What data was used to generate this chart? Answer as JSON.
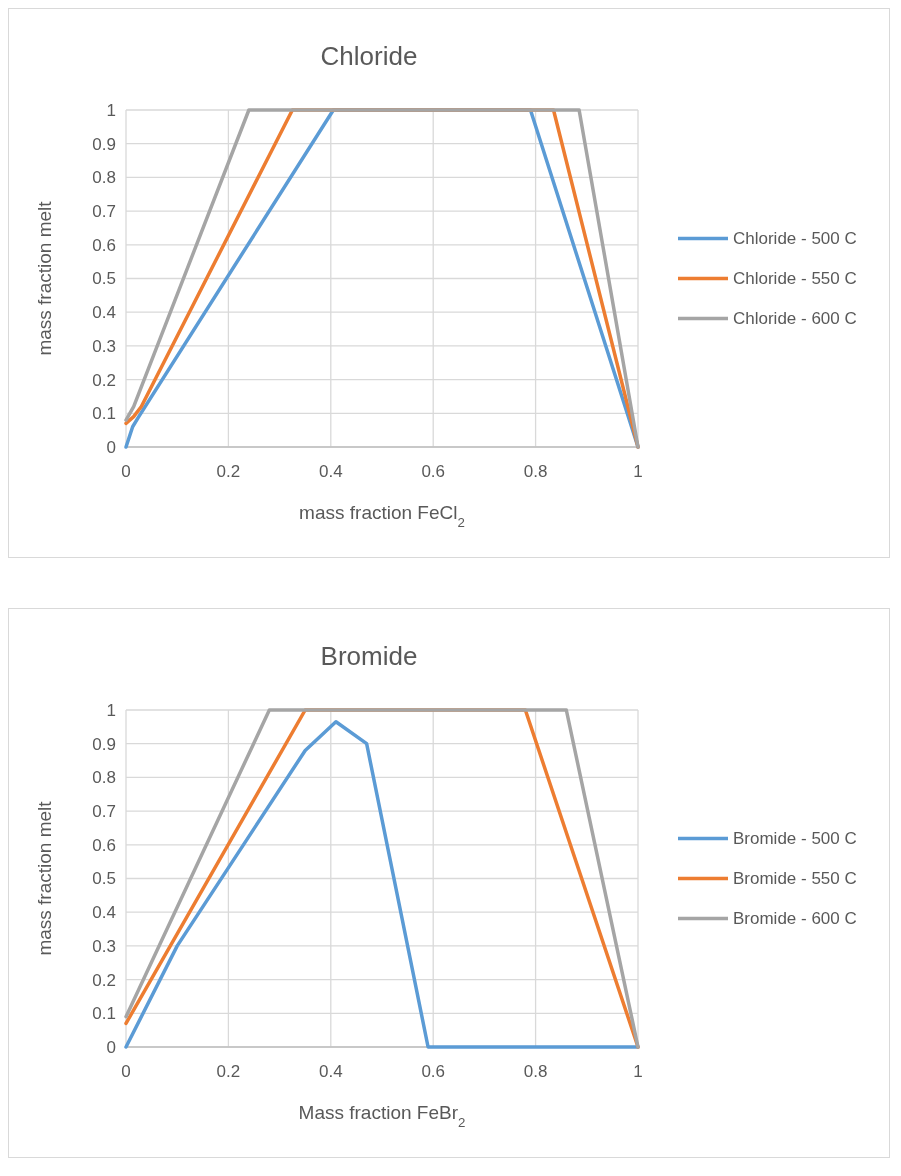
{
  "chart_data": [
    {
      "type": "line",
      "title": "Chloride",
      "xlabel": "mass fraction FeCl$_{2}$",
      "ylabel": "mass fraction melt",
      "xlim": [
        0,
        1
      ],
      "xticks": [
        0,
        0.2,
        0.4,
        0.6,
        0.8,
        1
      ],
      "ylim": [
        0,
        1
      ],
      "yticks": [
        0,
        0.1,
        0.2,
        0.3,
        0.4,
        0.5,
        0.6,
        0.7,
        0.8,
        0.9,
        1
      ],
      "grid": true,
      "legend": "right",
      "marker": "none",
      "line_style": "solid",
      "series": [
        {
          "name": "Chloride - 500 C",
          "color": "#5b9bd5",
          "x": [
            0,
            0.013,
            0.025,
            0.405,
            0.79,
            1
          ],
          "values": [
            0,
            0.06,
            0.09,
            1,
            1,
            0
          ]
        },
        {
          "name": "Chloride - 550 C",
          "color": "#ed7d31",
          "x": [
            0,
            0.015,
            0.03,
            0.325,
            0.835,
            1
          ],
          "values": [
            0.07,
            0.09,
            0.12,
            1,
            1,
            0
          ]
        },
        {
          "name": "Chloride - 600 C",
          "color": "#a5a5a5",
          "x": [
            0,
            0.015,
            0.24,
            0.885,
            1
          ],
          "values": [
            0.08,
            0.12,
            1,
            1,
            0
          ]
        }
      ]
    },
    {
      "type": "line",
      "title": "Bromide",
      "xlabel": "Mass fraction FeBr$_{2}$",
      "ylabel": "mass fraction melt",
      "xlim": [
        0,
        1
      ],
      "xticks": [
        0,
        0.2,
        0.4,
        0.6,
        0.8,
        1
      ],
      "ylim": [
        0,
        1
      ],
      "yticks": [
        0,
        0.1,
        0.2,
        0.3,
        0.4,
        0.5,
        0.6,
        0.7,
        0.8,
        0.9,
        1
      ],
      "grid": true,
      "legend": "right",
      "marker": "none",
      "line_style": "solid",
      "series": [
        {
          "name": "Bromide - 500 C",
          "color": "#5b9bd5",
          "x": [
            0,
            0.1,
            0.35,
            0.41,
            0.47,
            0.59,
            1
          ],
          "values": [
            0,
            0.3,
            0.88,
            0.965,
            0.9,
            0,
            0
          ]
        },
        {
          "name": "Bromide - 550 C",
          "color": "#ed7d31",
          "x": [
            0,
            0.35,
            0.78,
            1
          ],
          "values": [
            0.07,
            1,
            1,
            0
          ]
        },
        {
          "name": "Bromide - 600 C",
          "color": "#a5a5a5",
          "x": [
            0,
            0.28,
            0.86,
            1
          ],
          "values": [
            0.09,
            1,
            1,
            0
          ]
        }
      ]
    }
  ]
}
